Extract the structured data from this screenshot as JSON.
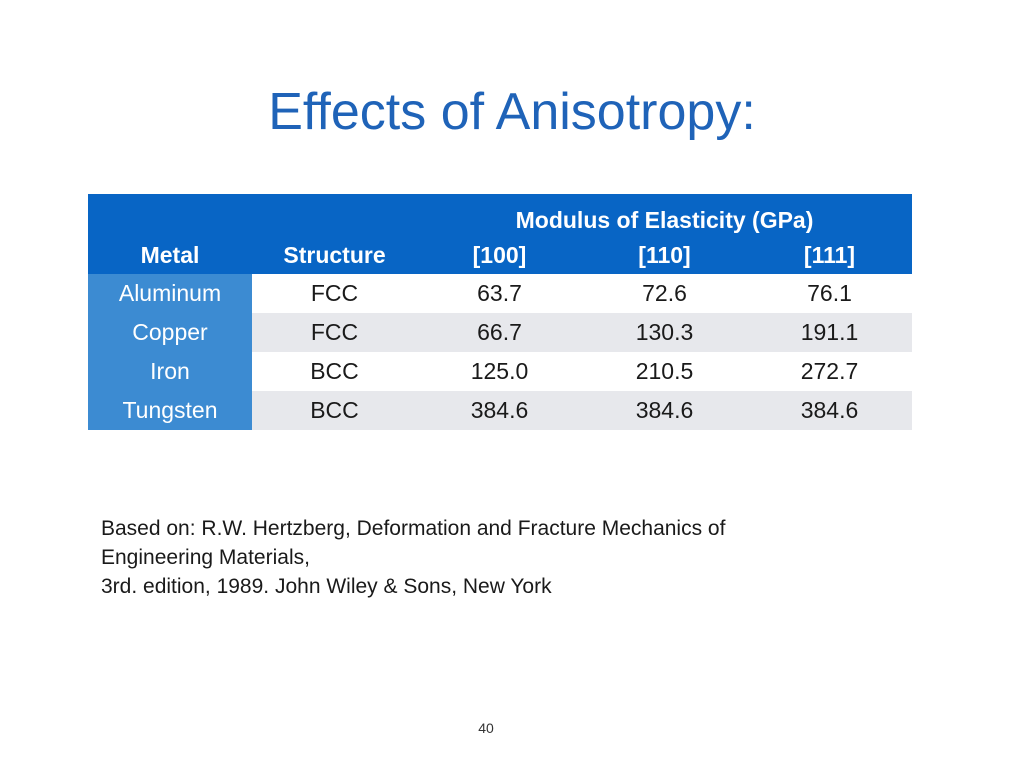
{
  "slide": {
    "title": "Effects of Anisotropy:",
    "page_number": "40"
  },
  "table": {
    "group_header": "Modulus of Elasticity (GPa)",
    "columns": [
      "Metal",
      "Structure",
      "[100]",
      "[110]",
      "[111]"
    ],
    "rows": [
      {
        "metal": "Aluminum",
        "structure": "FCC",
        "d100": "63.7",
        "d110": "72.6",
        "d111": "76.1"
      },
      {
        "metal": "Copper",
        "structure": "FCC",
        "d100": "66.7",
        "d110": "130.3",
        "d111": "191.1"
      },
      {
        "metal": "Iron",
        "structure": "BCC",
        "d100": "125.0",
        "d110": "210.5",
        "d111": "272.7"
      },
      {
        "metal": "Tungsten",
        "structure": "BCC",
        "d100": "384.6",
        "d110": "384.6",
        "d111": "384.6"
      }
    ]
  },
  "citation": {
    "line1": "Based on: R.W. Hertzberg, Deformation and Fracture Mechanics of",
    "line2": "Engineering Materials,",
    "line3": "3rd. edition, 1989. John Wiley & Sons, New York"
  },
  "colors": {
    "title": "#1f63b8",
    "header_bg": "#0865c5",
    "metal_col_bg": "#3c8bd2",
    "band_row_bg": "#e7e8ec"
  }
}
